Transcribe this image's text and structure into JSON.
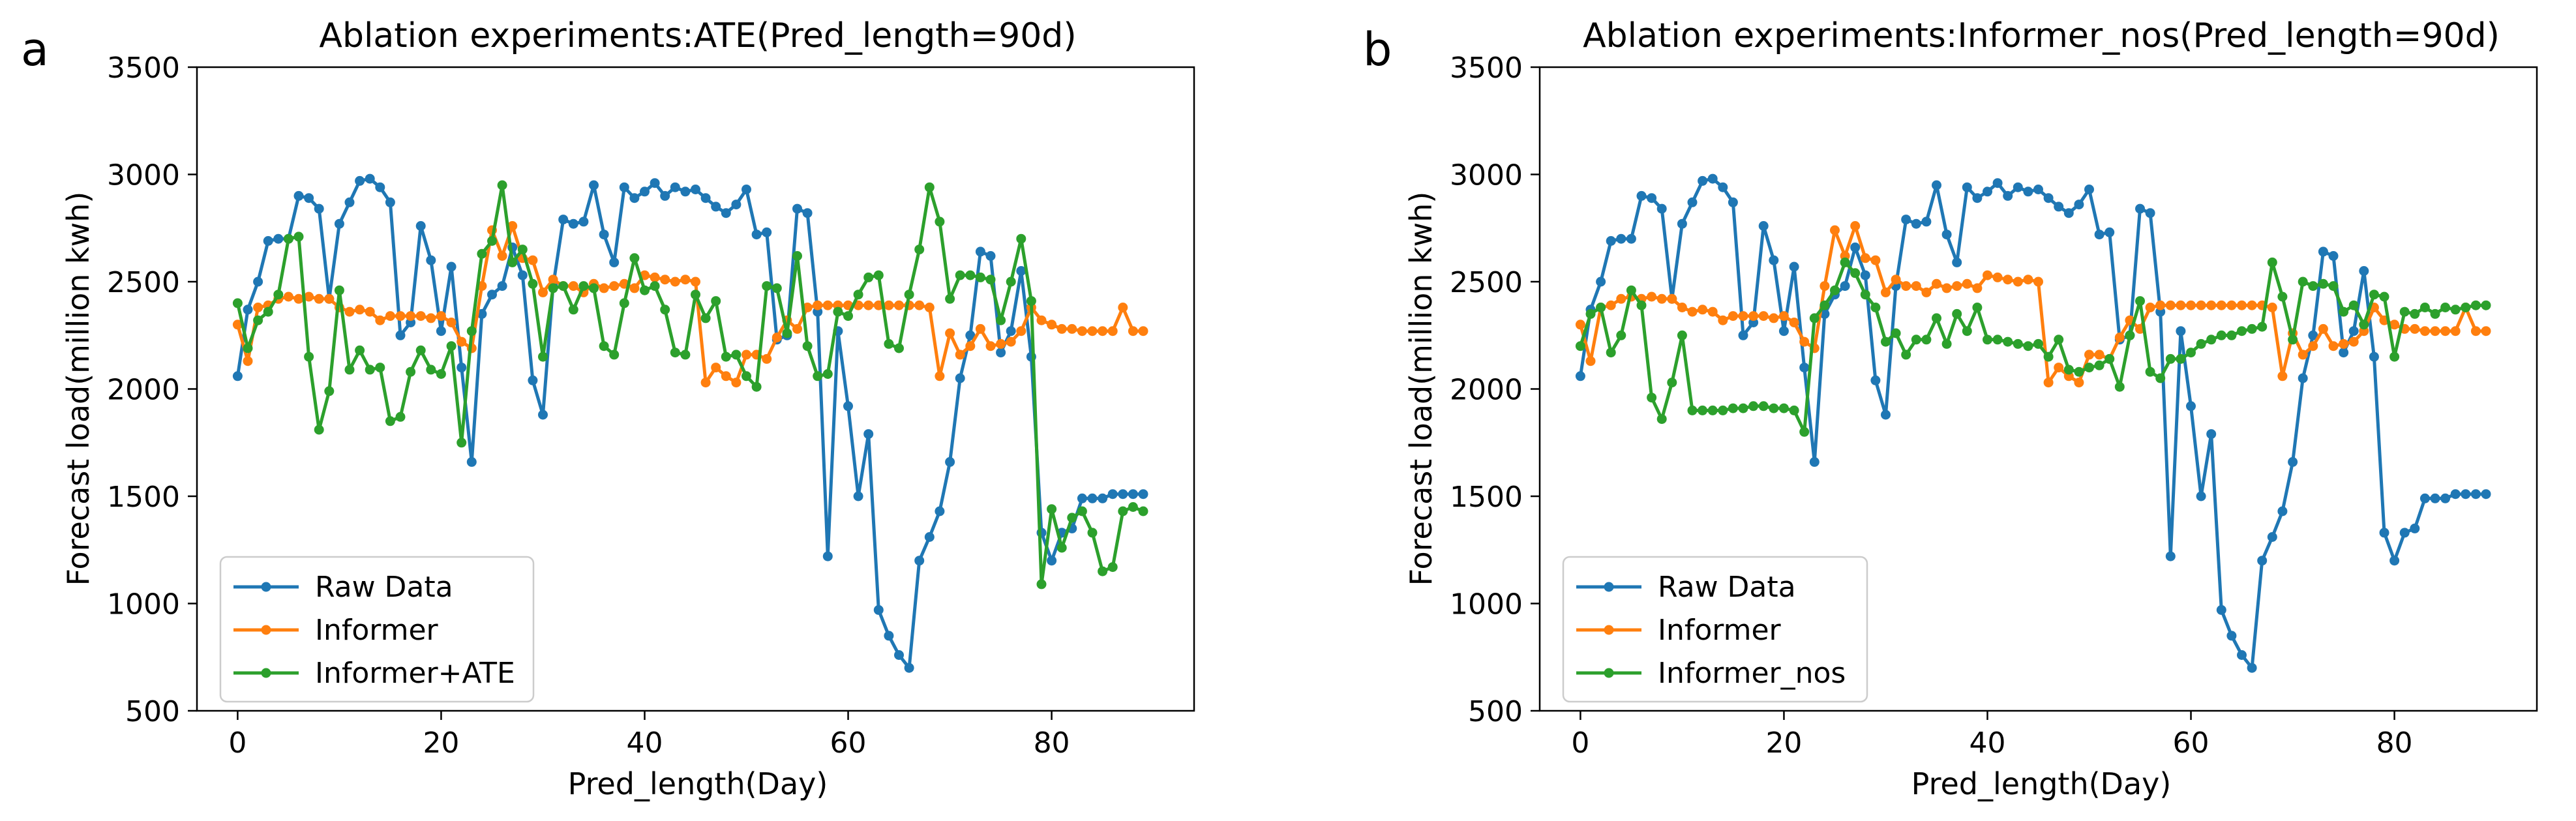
{
  "chart_data": [
    {
      "type": "line",
      "panel": "a",
      "title": "Ablation experiments:ATE(Pred_length=90d)",
      "xlabel": "Pred_length(Day)",
      "ylabel": "Forecast load(million kwh)",
      "xlim": [
        -4,
        94
      ],
      "ylim": [
        500,
        3500
      ],
      "xticks": [
        0,
        20,
        40,
        60,
        80
      ],
      "yticks": [
        500,
        1000,
        1500,
        2000,
        2500,
        3000,
        3500
      ],
      "grid": false,
      "legend": "lower-left",
      "series": [
        {
          "name": "Raw Data",
          "color": "#1f77b4",
          "values": [
            2060,
            2370,
            2500,
            2690,
            2700,
            2700,
            2900,
            2890,
            2840,
            2420,
            2770,
            2870,
            2970,
            2980,
            2940,
            2870,
            2250,
            2310,
            2760,
            2600,
            2270,
            2570,
            2100,
            1660,
            2350,
            2440,
            2480,
            2660,
            2530,
            2040,
            1880,
            2480,
            2790,
            2770,
            2780,
            2950,
            2720,
            2590,
            2940,
            2890,
            2920,
            2960,
            2900,
            2940,
            2920,
            2930,
            2890,
            2850,
            2820,
            2860,
            2930,
            2720,
            2730,
            2230,
            2250,
            2840,
            2820,
            2360,
            1220,
            2270,
            1920,
            1500,
            1790,
            970,
            850,
            760,
            700,
            1200,
            1310,
            1430,
            1660,
            2050,
            2250,
            2640,
            2620,
            2170,
            2270,
            2550,
            2150,
            1330,
            1200,
            1330,
            1350,
            1490,
            1490,
            1490,
            1510,
            1510,
            1510,
            1510
          ]
        },
        {
          "name": "Informer",
          "color": "#ff7f0e",
          "values": [
            2300,
            2130,
            2380,
            2390,
            2420,
            2430,
            2420,
            2430,
            2420,
            2420,
            2380,
            2360,
            2370,
            2360,
            2320,
            2340,
            2340,
            2340,
            2340,
            2330,
            2340,
            2310,
            2220,
            2190,
            2480,
            2740,
            2620,
            2760,
            2610,
            2600,
            2450,
            2510,
            2480,
            2480,
            2450,
            2490,
            2470,
            2480,
            2490,
            2470,
            2530,
            2520,
            2510,
            2500,
            2510,
            2500,
            2030,
            2100,
            2060,
            2030,
            2160,
            2160,
            2140,
            2240,
            2320,
            2280,
            2380,
            2390,
            2390,
            2390,
            2390,
            2390,
            2390,
            2390,
            2390,
            2390,
            2390,
            2390,
            2380,
            2060,
            2260,
            2160,
            2200,
            2280,
            2200,
            2210,
            2220,
            2270,
            2380,
            2320,
            2300,
            2280,
            2280,
            2270,
            2270,
            2270,
            2270,
            2380,
            2270,
            2270
          ]
        },
        {
          "name": "Informer+ATE",
          "color": "#2ca02c",
          "values": [
            2400,
            2190,
            2320,
            2360,
            2440,
            2700,
            2710,
            2150,
            1810,
            1990,
            2460,
            2090,
            2180,
            2090,
            2100,
            1850,
            1870,
            2080,
            2180,
            2090,
            2070,
            2200,
            1750,
            2270,
            2630,
            2690,
            2950,
            2590,
            2650,
            2490,
            2150,
            2470,
            2480,
            2370,
            2480,
            2470,
            2200,
            2160,
            2400,
            2610,
            2460,
            2480,
            2370,
            2170,
            2160,
            2440,
            2330,
            2410,
            2150,
            2160,
            2060,
            2010,
            2480,
            2470,
            2260,
            2620,
            2200,
            2060,
            2070,
            2360,
            2340,
            2440,
            2520,
            2530,
            2210,
            2190,
            2440,
            2650,
            2940,
            2780,
            2420,
            2530,
            2530,
            2520,
            2510,
            2320,
            2500,
            2700,
            2410,
            1090,
            1440,
            1260,
            1400,
            1430,
            1330,
            1150,
            1170,
            1430,
            1450,
            1430
          ]
        }
      ]
    },
    {
      "type": "line",
      "panel": "b",
      "title": "Ablation experiments:Informer_nos(Pred_length=90d)",
      "xlabel": "Pred_length(Day)",
      "ylabel": "Forecast load(million kwh)",
      "xlim": [
        -4,
        94
      ],
      "ylim": [
        500,
        3500
      ],
      "xticks": [
        0,
        20,
        40,
        60,
        80
      ],
      "yticks": [
        500,
        1000,
        1500,
        2000,
        2500,
        3000,
        3500
      ],
      "grid": false,
      "legend": "lower-left",
      "series": [
        {
          "name": "Raw Data",
          "color": "#1f77b4",
          "values": [
            2060,
            2370,
            2500,
            2690,
            2700,
            2700,
            2900,
            2890,
            2840,
            2420,
            2770,
            2870,
            2970,
            2980,
            2940,
            2870,
            2250,
            2310,
            2760,
            2600,
            2270,
            2570,
            2100,
            1660,
            2350,
            2440,
            2480,
            2660,
            2530,
            2040,
            1880,
            2480,
            2790,
            2770,
            2780,
            2950,
            2720,
            2590,
            2940,
            2890,
            2920,
            2960,
            2900,
            2940,
            2920,
            2930,
            2890,
            2850,
            2820,
            2860,
            2930,
            2720,
            2730,
            2230,
            2250,
            2840,
            2820,
            2360,
            1220,
            2270,
            1920,
            1500,
            1790,
            970,
            850,
            760,
            700,
            1200,
            1310,
            1430,
            1660,
            2050,
            2250,
            2640,
            2620,
            2170,
            2270,
            2550,
            2150,
            1330,
            1200,
            1330,
            1350,
            1490,
            1490,
            1490,
            1510,
            1510,
            1510,
            1510
          ]
        },
        {
          "name": "Informer",
          "color": "#ff7f0e",
          "values": [
            2300,
            2130,
            2380,
            2390,
            2420,
            2430,
            2420,
            2430,
            2420,
            2420,
            2380,
            2360,
            2370,
            2360,
            2320,
            2340,
            2340,
            2340,
            2340,
            2330,
            2340,
            2310,
            2220,
            2190,
            2480,
            2740,
            2620,
            2760,
            2610,
            2600,
            2450,
            2510,
            2480,
            2480,
            2450,
            2490,
            2470,
            2480,
            2490,
            2470,
            2530,
            2520,
            2510,
            2500,
            2510,
            2500,
            2030,
            2100,
            2060,
            2030,
            2160,
            2160,
            2140,
            2240,
            2320,
            2280,
            2380,
            2390,
            2390,
            2390,
            2390,
            2390,
            2390,
            2390,
            2390,
            2390,
            2390,
            2390,
            2380,
            2060,
            2260,
            2160,
            2200,
            2280,
            2200,
            2210,
            2220,
            2270,
            2380,
            2320,
            2300,
            2280,
            2280,
            2270,
            2270,
            2270,
            2270,
            2380,
            2270,
            2270
          ]
        },
        {
          "name": "Informer_nos",
          "color": "#2ca02c",
          "values": [
            2200,
            2350,
            2380,
            2170,
            2250,
            2460,
            2390,
            1960,
            1860,
            2030,
            2250,
            1900,
            1900,
            1900,
            1900,
            1910,
            1910,
            1920,
            1920,
            1910,
            1910,
            1900,
            1800,
            2330,
            2390,
            2460,
            2590,
            2540,
            2440,
            2380,
            2220,
            2260,
            2160,
            2230,
            2230,
            2330,
            2210,
            2350,
            2270,
            2380,
            2230,
            2230,
            2220,
            2210,
            2200,
            2210,
            2150,
            2230,
            2090,
            2080,
            2100,
            2110,
            2140,
            2010,
            2250,
            2410,
            2080,
            2050,
            2140,
            2140,
            2170,
            2210,
            2230,
            2250,
            2250,
            2270,
            2280,
            2290,
            2590,
            2430,
            2230,
            2500,
            2480,
            2490,
            2480,
            2360,
            2390,
            2300,
            2440,
            2430,
            2150,
            2360,
            2350,
            2380,
            2350,
            2380,
            2370,
            2380,
            2390,
            2390
          ]
        }
      ]
    }
  ]
}
